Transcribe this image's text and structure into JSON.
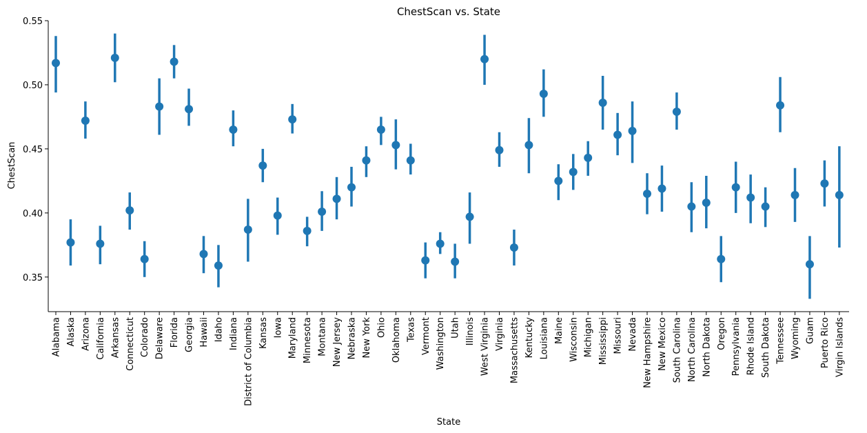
{
  "chart_data": {
    "type": "pointplot",
    "title": "ChestScan vs. State",
    "xlabel": "State",
    "ylabel": "ChestScan",
    "ylim": [
      0.323,
      0.55
    ],
    "yticks": [
      "0.35",
      "0.40",
      "0.45",
      "0.50",
      "0.55"
    ],
    "ytick_values": [
      0.35,
      0.4,
      0.45,
      0.5,
      0.55
    ],
    "grid": false,
    "color": "#1f77b4",
    "categories": [
      "Alabama",
      "Alaska",
      "Arizona",
      "California",
      "Arkansas",
      "Connecticut",
      "Colorado",
      "Delaware",
      "Florida",
      "Georgia",
      "Hawaii",
      "Idaho",
      "Indiana",
      "District of Columbia",
      "Kansas",
      "Iowa",
      "Maryland",
      "Minnesota",
      "Montana",
      "New Jersey",
      "Nebraska",
      "New York",
      "Ohio",
      "Oklahoma",
      "Texas",
      "Vermont",
      "Washington",
      "Utah",
      "Illinois",
      "West Virginia",
      "Virginia",
      "Massachusetts",
      "Kentucky",
      "Louisiana",
      "Maine",
      "Wisconsin",
      "Michigan",
      "Mississippi",
      "Missouri",
      "Nevada",
      "New Hampshire",
      "New Mexico",
      "South Carolina",
      "North Carolina",
      "North Dakota",
      "Oregon",
      "Pennsylvania",
      "Rhode Island",
      "South Dakota",
      "Tennessee",
      "Wyoming",
      "Guam",
      "Puerto Rico",
      "Virgin Islands"
    ],
    "values": [
      0.517,
      0.377,
      0.472,
      0.376,
      0.521,
      0.402,
      0.364,
      0.483,
      0.518,
      0.481,
      0.368,
      0.359,
      0.465,
      0.387,
      0.437,
      0.398,
      0.473,
      0.386,
      0.401,
      0.411,
      0.42,
      0.441,
      0.465,
      0.453,
      0.441,
      0.363,
      0.376,
      0.362,
      0.397,
      0.52,
      0.449,
      0.373,
      0.453,
      0.493,
      0.425,
      0.432,
      0.443,
      0.486,
      0.461,
      0.464,
      0.415,
      0.419,
      0.479,
      0.405,
      0.408,
      0.364,
      0.42,
      0.412,
      0.405,
      0.484,
      0.414,
      0.36,
      0.423,
      0.414
    ],
    "ci_low": [
      0.494,
      0.359,
      0.458,
      0.36,
      0.502,
      0.387,
      0.35,
      0.461,
      0.505,
      0.468,
      0.353,
      0.342,
      0.452,
      0.362,
      0.424,
      0.383,
      0.462,
      0.374,
      0.386,
      0.395,
      0.405,
      0.428,
      0.453,
      0.434,
      0.43,
      0.349,
      0.368,
      0.349,
      0.376,
      0.5,
      0.436,
      0.359,
      0.431,
      0.475,
      0.41,
      0.418,
      0.429,
      0.465,
      0.445,
      0.439,
      0.399,
      0.401,
      0.465,
      0.385,
      0.388,
      0.346,
      0.4,
      0.392,
      0.389,
      0.463,
      0.393,
      0.333,
      0.405,
      0.373
    ],
    "ci_high": [
      0.538,
      0.395,
      0.487,
      0.39,
      0.54,
      0.416,
      0.378,
      0.505,
      0.531,
      0.497,
      0.382,
      0.375,
      0.48,
      0.411,
      0.45,
      0.412,
      0.485,
      0.397,
      0.417,
      0.428,
      0.436,
      0.452,
      0.475,
      0.473,
      0.454,
      0.377,
      0.385,
      0.376,
      0.416,
      0.539,
      0.463,
      0.387,
      0.474,
      0.512,
      0.438,
      0.446,
      0.456,
      0.507,
      0.478,
      0.487,
      0.431,
      0.437,
      0.494,
      0.424,
      0.429,
      0.382,
      0.44,
      0.43,
      0.42,
      0.506,
      0.435,
      0.382,
      0.441,
      0.452
    ]
  }
}
